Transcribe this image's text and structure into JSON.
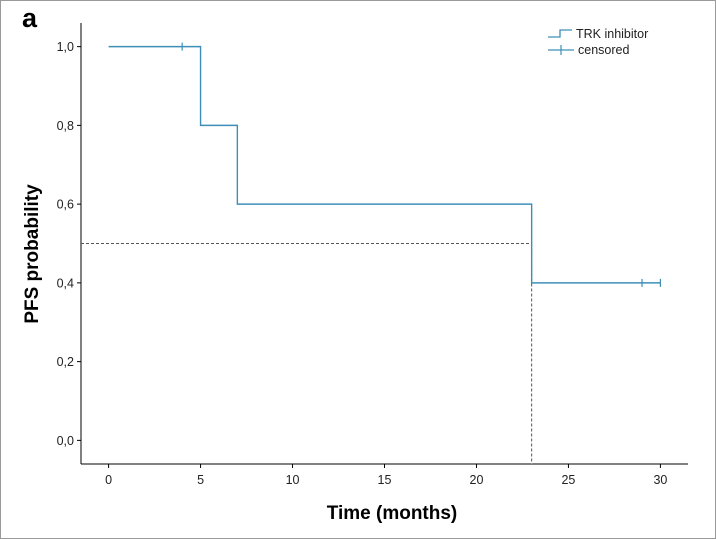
{
  "panel_label": "a",
  "colors": {
    "curve": "#3d8fb8",
    "reference": "#555555",
    "axis": "#000000"
  },
  "chart_data": {
    "type": "line",
    "subtype": "kaplan-meier-step",
    "title": "",
    "xlabel": "Time (months)",
    "ylabel": "PFS probability",
    "xlim": [
      -1.5,
      31.5
    ],
    "ylim": [
      -0.06,
      1.06
    ],
    "x_ticks": [
      0,
      5,
      10,
      15,
      20,
      25,
      30
    ],
    "x_tick_labels": [
      "0",
      "5",
      "10",
      "15",
      "20",
      "25",
      "30"
    ],
    "y_ticks": [
      0.0,
      0.2,
      0.4,
      0.6,
      0.8,
      1.0
    ],
    "y_tick_labels": [
      "0,0",
      "0,2",
      "0,4",
      "0,6",
      "0,8",
      "1,0"
    ],
    "grid": false,
    "legend_position": "top-right",
    "legend": [
      "TRK inhibitor",
      "censored"
    ],
    "series": [
      {
        "name": "TRK inhibitor",
        "steps": [
          {
            "x": 0,
            "y": 1.0
          },
          {
            "x": 5,
            "y": 0.8
          },
          {
            "x": 7,
            "y": 0.6
          },
          {
            "x": 23,
            "y": 0.4
          },
          {
            "x": 30,
            "y": 0.4
          }
        ],
        "censored": [
          {
            "x": 4,
            "y": 1.0
          },
          {
            "x": 29,
            "y": 0.4
          },
          {
            "x": 30,
            "y": 0.4
          }
        ]
      }
    ],
    "reference_lines": {
      "median_probability": 0.5,
      "median_time": 23
    }
  }
}
